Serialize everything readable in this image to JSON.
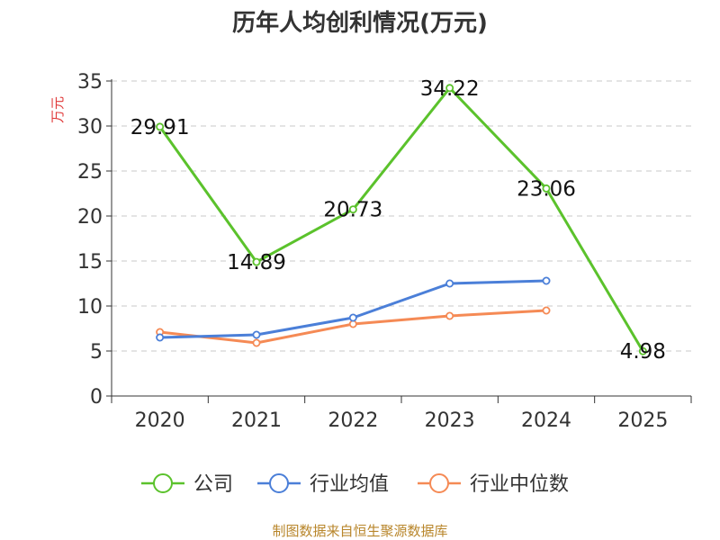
{
  "chart_data": {
    "type": "line",
    "title": "历年人均创利情况(万元)",
    "ylabel": "万元",
    "xlabel": "",
    "categories": [
      "2020",
      "2021",
      "2022",
      "2023",
      "2024",
      "2025"
    ],
    "ylim": [
      0,
      35
    ],
    "yticks": [
      0,
      5,
      10,
      15,
      20,
      25,
      30,
      35
    ],
    "grid": true,
    "legend_position": "bottom",
    "series": [
      {
        "name": "公司",
        "color": "#5bc22c",
        "values": [
          29.91,
          14.89,
          20.73,
          34.22,
          23.06,
          4.98
        ],
        "labels": [
          "29.91",
          "14.89",
          "20.73",
          "34.22",
          "23.06",
          "4.98"
        ]
      },
      {
        "name": "行业均值",
        "color": "#4b7fd8",
        "values": [
          6.5,
          6.8,
          8.7,
          12.5,
          12.8,
          null
        ],
        "labels": []
      },
      {
        "name": "行业中位数",
        "color": "#f58a55",
        "values": [
          7.1,
          5.9,
          8.0,
          8.9,
          9.5,
          null
        ],
        "labels": []
      }
    ]
  },
  "source": "制图数据来自恒生聚源数据库"
}
